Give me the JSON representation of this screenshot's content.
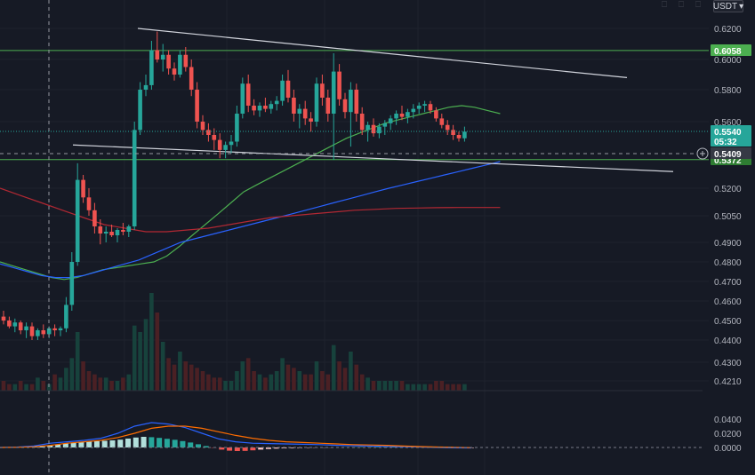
{
  "toolbar": {
    "currency": "USDT",
    "currency_caret": "▾"
  },
  "price_axis": {
    "ticks": [
      "0.6200",
      "0.6000",
      "0.5800",
      "0.5600",
      "0.5200",
      "0.5050",
      "0.4900",
      "0.4800",
      "0.4700",
      "0.4600",
      "0.4500",
      "0.4400",
      "0.4300",
      "0.4210"
    ],
    "badges": {
      "resistance": "0.6058",
      "last_price": "0.5540",
      "countdown": "05:32",
      "crosshair": "0.5409",
      "support": "0.5372"
    }
  },
  "macd_axis": {
    "ticks": [
      "0.0400",
      "0.0200",
      "0.0000"
    ]
  },
  "colors": {
    "background": "#161a25",
    "bull": "#26a69a",
    "bear": "#ef5350",
    "ma_fast": "#4caf50",
    "ma_mid": "#2962ff",
    "ma_slow": "#b22833",
    "trendline": "#d1d4dc",
    "hline": "#4caf50",
    "macd_line": "#2962ff",
    "signal_line": "#ff6d00"
  },
  "chart_data": {
    "type": "candlestick",
    "ylim": [
      0.418,
      0.626
    ],
    "candles": [
      [
        0.452,
        0.455,
        0.448,
        0.45
      ],
      [
        0.45,
        0.452,
        0.446,
        0.447
      ],
      [
        0.447,
        0.451,
        0.444,
        0.449
      ],
      [
        0.449,
        0.45,
        0.443,
        0.445
      ],
      [
        0.445,
        0.449,
        0.441,
        0.447
      ],
      [
        0.447,
        0.449,
        0.44,
        0.442
      ],
      [
        0.442,
        0.446,
        0.44,
        0.445
      ],
      [
        0.445,
        0.448,
        0.441,
        0.443
      ],
      [
        0.443,
        0.447,
        0.441,
        0.446
      ],
      [
        0.446,
        0.448,
        0.442,
        0.445
      ],
      [
        0.445,
        0.447,
        0.442,
        0.446
      ],
      [
        0.446,
        0.462,
        0.444,
        0.458
      ],
      [
        0.458,
        0.485,
        0.455,
        0.48
      ],
      [
        0.48,
        0.535,
        0.478,
        0.525
      ],
      [
        0.525,
        0.528,
        0.512,
        0.515
      ],
      [
        0.515,
        0.52,
        0.505,
        0.508
      ],
      [
        0.508,
        0.512,
        0.495,
        0.499
      ],
      [
        0.499,
        0.503,
        0.489,
        0.495
      ],
      [
        0.495,
        0.499,
        0.49,
        0.496
      ],
      [
        0.496,
        0.5,
        0.493,
        0.494
      ],
      [
        0.494,
        0.498,
        0.49,
        0.497
      ],
      [
        0.497,
        0.501,
        0.494,
        0.496
      ],
      [
        0.496,
        0.5,
        0.493,
        0.499
      ],
      [
        0.499,
        0.56,
        0.497,
        0.555
      ],
      [
        0.555,
        0.585,
        0.552,
        0.58
      ],
      [
        0.58,
        0.59,
        0.576,
        0.583
      ],
      [
        0.583,
        0.612,
        0.58,
        0.606
      ],
      [
        0.606,
        0.618,
        0.598,
        0.6
      ],
      [
        0.6,
        0.61,
        0.592,
        0.603
      ],
      [
        0.603,
        0.606,
        0.59,
        0.594
      ],
      [
        0.594,
        0.598,
        0.586,
        0.59
      ],
      [
        0.59,
        0.606,
        0.588,
        0.603
      ],
      [
        0.603,
        0.608,
        0.592,
        0.595
      ],
      [
        0.595,
        0.6,
        0.576,
        0.58
      ],
      [
        0.58,
        0.585,
        0.556,
        0.56
      ],
      [
        0.56,
        0.564,
        0.552,
        0.555
      ],
      [
        0.555,
        0.559,
        0.548,
        0.552
      ],
      [
        0.552,
        0.556,
        0.543,
        0.549
      ],
      [
        0.549,
        0.553,
        0.538,
        0.543
      ],
      [
        0.543,
        0.548,
        0.538,
        0.546
      ],
      [
        0.546,
        0.552,
        0.541,
        0.548
      ],
      [
        0.548,
        0.57,
        0.545,
        0.565
      ],
      [
        0.565,
        0.588,
        0.562,
        0.584
      ],
      [
        0.584,
        0.59,
        0.566,
        0.57
      ],
      [
        0.57,
        0.574,
        0.564,
        0.567
      ],
      [
        0.567,
        0.572,
        0.563,
        0.57
      ],
      [
        0.57,
        0.575,
        0.566,
        0.568
      ],
      [
        0.568,
        0.573,
        0.565,
        0.571
      ],
      [
        0.571,
        0.576,
        0.567,
        0.573
      ],
      [
        0.573,
        0.59,
        0.57,
        0.586
      ],
      [
        0.586,
        0.593,
        0.572,
        0.575
      ],
      [
        0.575,
        0.58,
        0.56,
        0.565
      ],
      [
        0.565,
        0.571,
        0.556,
        0.568
      ],
      [
        0.568,
        0.573,
        0.558,
        0.562
      ],
      [
        0.562,
        0.566,
        0.554,
        0.56
      ],
      [
        0.56,
        0.588,
        0.557,
        0.584
      ],
      [
        0.584,
        0.59,
        0.57,
        0.575
      ],
      [
        0.575,
        0.58,
        0.56,
        0.565
      ],
      [
        0.565,
        0.604,
        0.537,
        0.592
      ],
      [
        0.592,
        0.597,
        0.57,
        0.574
      ],
      [
        0.574,
        0.578,
        0.562,
        0.566
      ],
      [
        0.566,
        0.585,
        0.545,
        0.58
      ],
      [
        0.58,
        0.584,
        0.56,
        0.565
      ],
      [
        0.565,
        0.569,
        0.552,
        0.555
      ],
      [
        0.555,
        0.56,
        0.548,
        0.558
      ],
      [
        0.558,
        0.562,
        0.551,
        0.553
      ],
      [
        0.553,
        0.559,
        0.55,
        0.557
      ],
      [
        0.557,
        0.561,
        0.552,
        0.559
      ],
      [
        0.559,
        0.564,
        0.555,
        0.562
      ],
      [
        0.562,
        0.567,
        0.558,
        0.565
      ],
      [
        0.565,
        0.57,
        0.561,
        0.563
      ],
      [
        0.563,
        0.568,
        0.559,
        0.566
      ],
      [
        0.566,
        0.571,
        0.562,
        0.568
      ],
      [
        0.568,
        0.572,
        0.565,
        0.57
      ],
      [
        0.57,
        0.573,
        0.566,
        0.571
      ],
      [
        0.571,
        0.573,
        0.565,
        0.567
      ],
      [
        0.567,
        0.569,
        0.56,
        0.562
      ],
      [
        0.562,
        0.565,
        0.556,
        0.558
      ],
      [
        0.558,
        0.561,
        0.552,
        0.555
      ],
      [
        0.555,
        0.558,
        0.549,
        0.552
      ],
      [
        0.552,
        0.554,
        0.548,
        0.55
      ],
      [
        0.55,
        0.557,
        0.548,
        0.554
      ]
    ],
    "moving_averages": [
      {
        "color_key": "ma_fast",
        "values": [
          0.48,
          0.478,
          0.476,
          0.474,
          0.472,
          0.471,
          0.472,
          0.474,
          0.476,
          0.477,
          0.478,
          0.479,
          0.48,
          0.483,
          0.488,
          0.494,
          0.5,
          0.506,
          0.512,
          0.518,
          0.522,
          0.526,
          0.53,
          0.534,
          0.538,
          0.542,
          0.546,
          0.55,
          0.553,
          0.556,
          0.559,
          0.561,
          0.563,
          0.565,
          0.567,
          0.569,
          0.57,
          0.569,
          0.567,
          0.565
        ]
      },
      {
        "color_key": "ma_mid",
        "values": [
          0.479,
          0.477,
          0.475,
          0.473,
          0.472,
          0.472,
          0.473,
          0.475,
          0.477,
          0.479,
          0.481,
          0.484,
          0.487,
          0.49,
          0.492,
          0.494,
          0.496,
          0.498,
          0.5,
          0.502,
          0.504,
          0.506,
          0.508,
          0.51,
          0.512,
          0.514,
          0.516,
          0.518,
          0.52,
          0.522,
          0.524,
          0.526,
          0.528,
          0.53,
          0.532,
          0.534,
          0.536
        ]
      },
      {
        "color_key": "ma_slow",
        "values": [
          0.52,
          0.516,
          0.512,
          0.508,
          0.504,
          0.5,
          0.498,
          0.496,
          0.496,
          0.497,
          0.498,
          0.5,
          0.502,
          0.504,
          0.505,
          0.506,
          0.507,
          0.508,
          0.5085,
          0.509,
          0.5092,
          0.5094,
          0.5095,
          0.5095,
          0.5095
        ]
      }
    ],
    "horizontal_lines": [
      0.6058,
      0.5372
    ],
    "trendlines": [
      {
        "from": [
          0.62
        ],
        "to": [
          0.588
        ]
      },
      {
        "from": [
          0.546
        ],
        "to": [
          0.53
        ]
      }
    ],
    "volume": [
      3,
      2,
      2,
      3,
      2,
      2,
      4,
      3,
      2,
      5,
      4,
      7,
      10,
      18,
      9,
      6,
      5,
      4,
      4,
      3,
      3,
      4,
      5,
      20,
      18,
      22,
      30,
      24,
      15,
      10,
      8,
      12,
      9,
      8,
      7,
      6,
      5,
      4,
      4,
      3,
      3,
      6,
      9,
      10,
      6,
      5,
      4,
      5,
      6,
      10,
      8,
      7,
      6,
      5,
      5,
      9,
      6,
      5,
      14,
      9,
      7,
      12,
      8,
      5,
      4,
      3,
      3,
      3,
      3,
      3,
      3,
      2,
      2,
      2,
      2,
      2,
      3,
      3,
      2,
      2,
      2,
      2
    ],
    "macd": {
      "histogram": [
        0.0012,
        0.0016,
        0.0022,
        0.003,
        0.0042,
        0.0055,
        0.0068,
        0.0078,
        0.0085,
        0.009,
        0.0094,
        0.01,
        0.011,
        0.0125,
        0.014,
        0.015,
        0.0145,
        0.0135,
        0.0122,
        0.0108,
        0.009,
        0.007,
        0.0045,
        0.002,
        -0.0005,
        -0.003,
        -0.0045,
        -0.005,
        -0.0048,
        -0.004,
        -0.003,
        -0.0022,
        -0.0016,
        -0.0012,
        -0.001,
        -0.0008,
        -0.0006,
        -0.0004,
        -0.0003,
        -0.0002,
        -0.0001,
        0.0002,
        0.0004,
        0.0006,
        0.0007,
        0.0008,
        0.0008,
        0.0007,
        0.0005,
        0.0004,
        0.0003,
        0.0002,
        0.0001,
        -0.0001,
        -0.0003,
        -0.0005,
        -0.0006,
        -0.0007
      ],
      "macd_line": [
        0.0,
        0.0005,
        0.002,
        0.006,
        0.008,
        0.01,
        0.013,
        0.02,
        0.03,
        0.035,
        0.033,
        0.028,
        0.02,
        0.012,
        0.008,
        0.006,
        0.0055,
        0.005,
        0.0045,
        0.004,
        0.003,
        0.0025,
        0.002,
        0.0015,
        0.001,
        0.0005,
        0.0,
        -0.0005,
        -0.0006
      ],
      "signal_line": [
        0.0,
        0.0003,
        0.001,
        0.003,
        0.006,
        0.008,
        0.01,
        0.014,
        0.02,
        0.027,
        0.03,
        0.03,
        0.027,
        0.022,
        0.017,
        0.013,
        0.01,
        0.008,
        0.007,
        0.006,
        0.005,
        0.004,
        0.0035,
        0.003,
        0.002,
        0.0012,
        0.0006,
        0.0002,
        -0.0002
      ],
      "ylim": [
        -0.008,
        0.04
      ]
    }
  }
}
